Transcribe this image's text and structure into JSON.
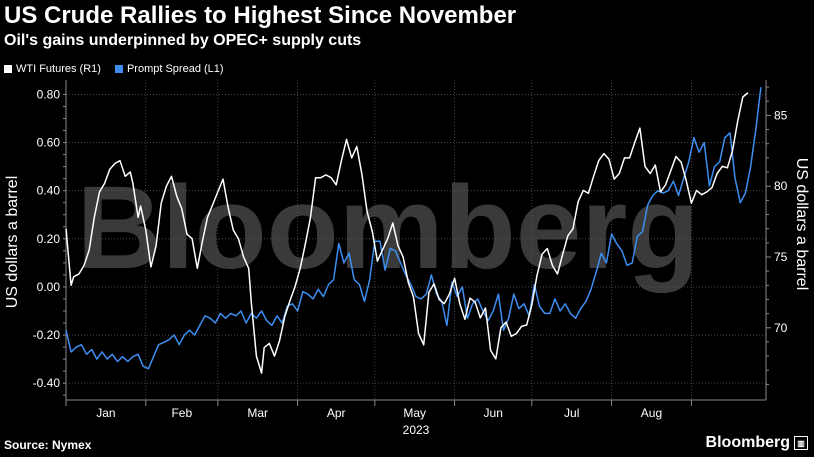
{
  "header": {
    "title": "US Crude Rallies to Highest Since November",
    "subtitle": "Oil's gains underpinned by OPEC+ supply cuts"
  },
  "footer": {
    "source": "Source: Nymex",
    "brand": "Bloomberg"
  },
  "watermark": "Bloomberg",
  "colors": {
    "wti": "#ffffff",
    "spread": "#3d8ef0",
    "background": "#000000",
    "grid": "#555555"
  },
  "chart_data": {
    "type": "line",
    "title": "US Crude Rallies to Highest Since November",
    "subtitle": "Oil's gains underpinned by OPEC+ supply cuts",
    "x_categories": [
      "Jan",
      "Feb",
      "Mar",
      "Apr",
      "May",
      "Jun",
      "Jul",
      "Aug"
    ],
    "x_year_label": "2023",
    "left_axis": {
      "label": "US dollars a barrel",
      "ticks": [
        "0.80",
        "0.60",
        "0.40",
        "0.20",
        "0.00",
        "-0.20",
        "-0.40"
      ],
      "range": [
        -0.47,
        0.86
      ]
    },
    "right_axis": {
      "label": "US dollars a barrel",
      "ticks": [
        "85",
        "80",
        "75",
        "70"
      ],
      "range": [
        64.9,
        87.5
      ]
    },
    "grid": true,
    "legend_position": "top-left",
    "series": [
      {
        "name": "WTI Futures (R1)",
        "axis": "right",
        "values": [
          [
            0,
            77.0
          ],
          [
            2,
            73.0
          ],
          [
            3,
            73.6
          ],
          [
            5,
            73.8
          ],
          [
            7,
            74.4
          ],
          [
            9,
            75.5
          ],
          [
            11,
            77.8
          ],
          [
            13,
            79.6
          ],
          [
            15,
            80.2
          ],
          [
            17,
            81.2
          ],
          [
            19,
            81.6
          ],
          [
            21,
            81.8
          ],
          [
            23,
            80.7
          ],
          [
            25,
            81.0
          ],
          [
            26,
            80.2
          ],
          [
            28,
            77.8
          ],
          [
            29,
            78.6
          ],
          [
            31,
            76.9
          ],
          [
            33,
            74.3
          ],
          [
            35,
            75.8
          ],
          [
            37,
            78.8
          ],
          [
            39,
            80.0
          ],
          [
            41,
            80.7
          ],
          [
            43,
            79.3
          ],
          [
            45,
            78.4
          ],
          [
            47,
            76.6
          ],
          [
            49,
            76.3
          ],
          [
            51,
            74.2
          ],
          [
            53,
            76.1
          ],
          [
            55,
            77.8
          ],
          [
            57,
            78.7
          ],
          [
            59,
            79.6
          ],
          [
            61,
            80.5
          ],
          [
            63,
            78.5
          ],
          [
            65,
            76.9
          ],
          [
            67,
            76.3
          ],
          [
            69,
            75.0
          ],
          [
            71,
            74.2
          ],
          [
            72,
            71.8
          ],
          [
            74,
            68.0
          ],
          [
            76,
            66.8
          ],
          [
            77,
            68.6
          ],
          [
            79,
            68.9
          ],
          [
            81,
            68.0
          ],
          [
            83,
            69.1
          ],
          [
            85,
            70.8
          ],
          [
            87,
            71.9
          ],
          [
            89,
            72.9
          ],
          [
            91,
            74.2
          ],
          [
            93,
            75.9
          ],
          [
            95,
            77.8
          ],
          [
            97,
            80.6
          ],
          [
            99,
            80.6
          ],
          [
            101,
            80.8
          ],
          [
            103,
            80.6
          ],
          [
            105,
            80.1
          ],
          [
            107,
            81.8
          ],
          [
            109,
            83.3
          ],
          [
            111,
            82.0
          ],
          [
            113,
            82.8
          ],
          [
            115,
            80.8
          ],
          [
            117,
            78.2
          ],
          [
            119,
            76.8
          ],
          [
            121,
            74.7
          ],
          [
            123,
            75.5
          ],
          [
            125,
            76.3
          ],
          [
            127,
            77.4
          ],
          [
            129,
            75.8
          ],
          [
            131,
            75.0
          ],
          [
            133,
            73.2
          ],
          [
            135,
            72.2
          ],
          [
            137,
            69.6
          ],
          [
            139,
            68.8
          ],
          [
            141,
            72.5
          ],
          [
            143,
            73.1
          ],
          [
            145,
            72.0
          ],
          [
            147,
            71.7
          ],
          [
            149,
            72.4
          ],
          [
            151,
            73.5
          ],
          [
            153,
            71.7
          ],
          [
            155,
            70.6
          ],
          [
            157,
            72.1
          ],
          [
            159,
            71.8
          ],
          [
            161,
            70.7
          ],
          [
            163,
            71.4
          ],
          [
            165,
            68.4
          ],
          [
            167,
            67.8
          ],
          [
            169,
            70.0
          ],
          [
            171,
            70.4
          ],
          [
            173,
            69.4
          ],
          [
            175,
            69.6
          ],
          [
            177,
            70.1
          ],
          [
            179,
            70.2
          ],
          [
            181,
            71.6
          ],
          [
            183,
            73.7
          ],
          [
            185,
            75.2
          ],
          [
            187,
            75.6
          ],
          [
            189,
            74.4
          ],
          [
            191,
            73.8
          ],
          [
            193,
            75.2
          ],
          [
            195,
            76.5
          ],
          [
            197,
            77.0
          ],
          [
            199,
            78.9
          ],
          [
            201,
            79.7
          ],
          [
            203,
            79.5
          ],
          [
            205,
            80.7
          ],
          [
            207,
            81.8
          ],
          [
            209,
            82.3
          ],
          [
            211,
            81.9
          ],
          [
            213,
            80.5
          ],
          [
            215,
            80.9
          ],
          [
            217,
            82.0
          ],
          [
            219,
            82.0
          ],
          [
            221,
            83.1
          ],
          [
            223,
            84.1
          ],
          [
            225,
            81.4
          ],
          [
            227,
            80.9
          ],
          [
            229,
            81.5
          ],
          [
            231,
            79.6
          ],
          [
            233,
            80.1
          ],
          [
            235,
            81.1
          ],
          [
            237,
            82.1
          ],
          [
            239,
            81.7
          ],
          [
            241,
            80.4
          ],
          [
            243,
            78.8
          ],
          [
            245,
            79.7
          ],
          [
            247,
            79.4
          ],
          [
            249,
            79.6
          ],
          [
            251,
            79.9
          ],
          [
            253,
            80.9
          ],
          [
            255,
            81.4
          ],
          [
            257,
            81.3
          ],
          [
            259,
            82.5
          ],
          [
            261,
            84.6
          ],
          [
            263,
            86.3
          ],
          [
            265,
            86.6
          ]
        ]
      },
      {
        "name": "Prompt Spread (L1)",
        "axis": "left",
        "values": [
          [
            0,
            -0.18
          ],
          [
            2,
            -0.27
          ],
          [
            4,
            -0.25
          ],
          [
            6,
            -0.24
          ],
          [
            8,
            -0.28
          ],
          [
            10,
            -0.26
          ],
          [
            12,
            -0.3
          ],
          [
            14,
            -0.27
          ],
          [
            16,
            -0.3
          ],
          [
            18,
            -0.28
          ],
          [
            20,
            -0.31
          ],
          [
            22,
            -0.29
          ],
          [
            24,
            -0.31
          ],
          [
            26,
            -0.29
          ],
          [
            28,
            -0.28
          ],
          [
            30,
            -0.33
          ],
          [
            32,
            -0.34
          ],
          [
            34,
            -0.29
          ],
          [
            36,
            -0.24
          ],
          [
            38,
            -0.23
          ],
          [
            40,
            -0.22
          ],
          [
            42,
            -0.2
          ],
          [
            44,
            -0.24
          ],
          [
            46,
            -0.2
          ],
          [
            48,
            -0.18
          ],
          [
            50,
            -0.2
          ],
          [
            52,
            -0.16
          ],
          [
            54,
            -0.12
          ],
          [
            56,
            -0.13
          ],
          [
            58,
            -0.15
          ],
          [
            60,
            -0.11
          ],
          [
            62,
            -0.13
          ],
          [
            64,
            -0.11
          ],
          [
            66,
            -0.12
          ],
          [
            68,
            -0.1
          ],
          [
            70,
            -0.15
          ],
          [
            72,
            -0.11
          ],
          [
            74,
            -0.13
          ],
          [
            76,
            -0.1
          ],
          [
            78,
            -0.14
          ],
          [
            80,
            -0.16
          ],
          [
            82,
            -0.12
          ],
          [
            84,
            -0.15
          ],
          [
            86,
            -0.08
          ],
          [
            88,
            -0.07
          ],
          [
            90,
            -0.1
          ],
          [
            92,
            -0.02
          ],
          [
            94,
            -0.03
          ],
          [
            96,
            -0.05
          ],
          [
            98,
            -0.01
          ],
          [
            100,
            -0.04
          ],
          [
            102,
            0.01
          ],
          [
            104,
            0.03
          ],
          [
            106,
            0.18
          ],
          [
            108,
            0.1
          ],
          [
            110,
            0.14
          ],
          [
            112,
            0.03
          ],
          [
            114,
            0.01
          ],
          [
            116,
            -0.06
          ],
          [
            118,
            0.03
          ],
          [
            120,
            0.19
          ],
          [
            122,
            0.19
          ],
          [
            124,
            0.07
          ],
          [
            126,
            0.16
          ],
          [
            128,
            0.15
          ],
          [
            130,
            0.1
          ],
          [
            132,
            0.05
          ],
          [
            134,
            0.01
          ],
          [
            136,
            -0.04
          ],
          [
            138,
            -0.05
          ],
          [
            140,
            -0.03
          ],
          [
            142,
            0.05
          ],
          [
            144,
            -0.03
          ],
          [
            146,
            -0.06
          ],
          [
            148,
            -0.16
          ],
          [
            150,
            0.02
          ],
          [
            152,
            -0.04
          ],
          [
            154,
            0.0
          ],
          [
            156,
            -0.13
          ],
          [
            158,
            -0.07
          ],
          [
            160,
            -0.05
          ],
          [
            162,
            -0.1
          ],
          [
            164,
            -0.14
          ],
          [
            166,
            -0.1
          ],
          [
            168,
            -0.03
          ],
          [
            170,
            -0.18
          ],
          [
            172,
            -0.13
          ],
          [
            174,
            -0.03
          ],
          [
            176,
            -0.09
          ],
          [
            178,
            -0.07
          ],
          [
            180,
            -0.12
          ],
          [
            182,
            0.01
          ],
          [
            184,
            -0.08
          ],
          [
            186,
            -0.11
          ],
          [
            188,
            -0.11
          ],
          [
            190,
            -0.05
          ],
          [
            192,
            -0.1
          ],
          [
            194,
            -0.07
          ],
          [
            196,
            -0.11
          ],
          [
            198,
            -0.13
          ],
          [
            200,
            -0.09
          ],
          [
            202,
            -0.06
          ],
          [
            204,
            -0.01
          ],
          [
            206,
            0.06
          ],
          [
            208,
            0.14
          ],
          [
            210,
            0.1
          ],
          [
            212,
            0.22
          ],
          [
            214,
            0.18
          ],
          [
            216,
            0.15
          ],
          [
            218,
            0.09
          ],
          [
            220,
            0.1
          ],
          [
            222,
            0.21
          ],
          [
            224,
            0.23
          ],
          [
            226,
            0.34
          ],
          [
            228,
            0.38
          ],
          [
            230,
            0.4
          ],
          [
            232,
            0.39
          ],
          [
            234,
            0.4
          ],
          [
            236,
            0.44
          ],
          [
            238,
            0.38
          ],
          [
            240,
            0.45
          ],
          [
            242,
            0.52
          ],
          [
            244,
            0.62
          ],
          [
            246,
            0.56
          ],
          [
            248,
            0.6
          ],
          [
            250,
            0.42
          ],
          [
            252,
            0.5
          ],
          [
            254,
            0.52
          ],
          [
            256,
            0.62
          ],
          [
            258,
            0.64
          ],
          [
            260,
            0.45
          ],
          [
            262,
            0.35
          ],
          [
            264,
            0.39
          ],
          [
            266,
            0.5
          ],
          [
            268,
            0.65
          ],
          [
            270,
            0.83
          ]
        ]
      }
    ]
  }
}
